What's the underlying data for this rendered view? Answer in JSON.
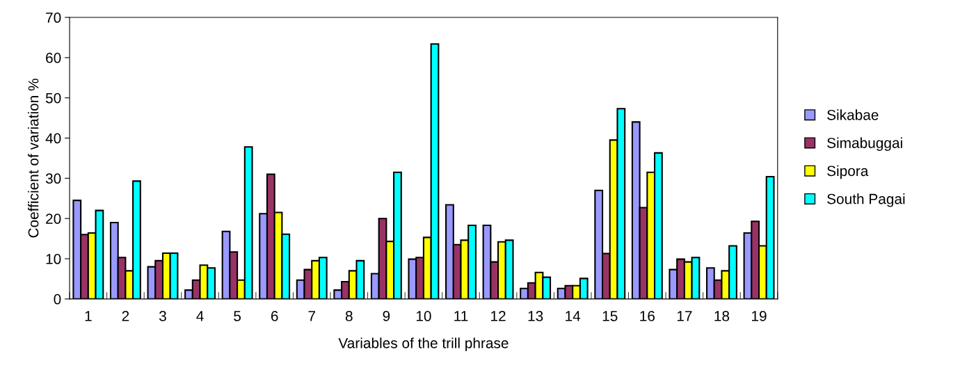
{
  "chart_data": {
    "type": "bar",
    "xlabel": "Variables of the trill phrase",
    "ylabel": "Coefficient of variation %",
    "categories": [
      "1",
      "2",
      "3",
      "4",
      "5",
      "6",
      "7",
      "8",
      "9",
      "10",
      "11",
      "12",
      "13",
      "14",
      "15",
      "16",
      "17",
      "18",
      "19"
    ],
    "series": [
      {
        "name": "Sikabae",
        "color": "#9999ff",
        "values": [
          24.5,
          19,
          8,
          2.2,
          16.8,
          21.2,
          4.7,
          2.2,
          6.3,
          9.9,
          23.4,
          18.3,
          2.6,
          2.6,
          27,
          44,
          7.3,
          7.7,
          16.4
        ]
      },
      {
        "name": "Simabuggai",
        "color": "#993366",
        "values": [
          16,
          10.3,
          9.5,
          4.7,
          11.7,
          31,
          7.3,
          4.3,
          20,
          10.3,
          13.5,
          9.2,
          4,
          3.3,
          11.3,
          22.7,
          9.9,
          4.7,
          19.3
        ]
      },
      {
        "name": "Sipora",
        "color": "#ffff00",
        "values": [
          16.4,
          7,
          11.4,
          8.4,
          4.7,
          21.5,
          9.5,
          7,
          14.3,
          15.3,
          14.6,
          14.2,
          6.6,
          3.3,
          39.5,
          31.5,
          9.2,
          7,
          13.2
        ]
      },
      {
        "name": "South Pagai",
        "color": "#00ffff",
        "values": [
          22,
          29.3,
          11.4,
          7.7,
          37.8,
          16.1,
          10.3,
          9.5,
          31.5,
          63.4,
          18.3,
          14.6,
          5.4,
          5.1,
          47.3,
          36.3,
          10.3,
          13.2,
          30.4
        ]
      }
    ],
    "ylim": [
      0,
      70
    ],
    "yticks": [
      0,
      10,
      20,
      30,
      40,
      50,
      60,
      70
    ],
    "grid": false,
    "legend": "right"
  }
}
